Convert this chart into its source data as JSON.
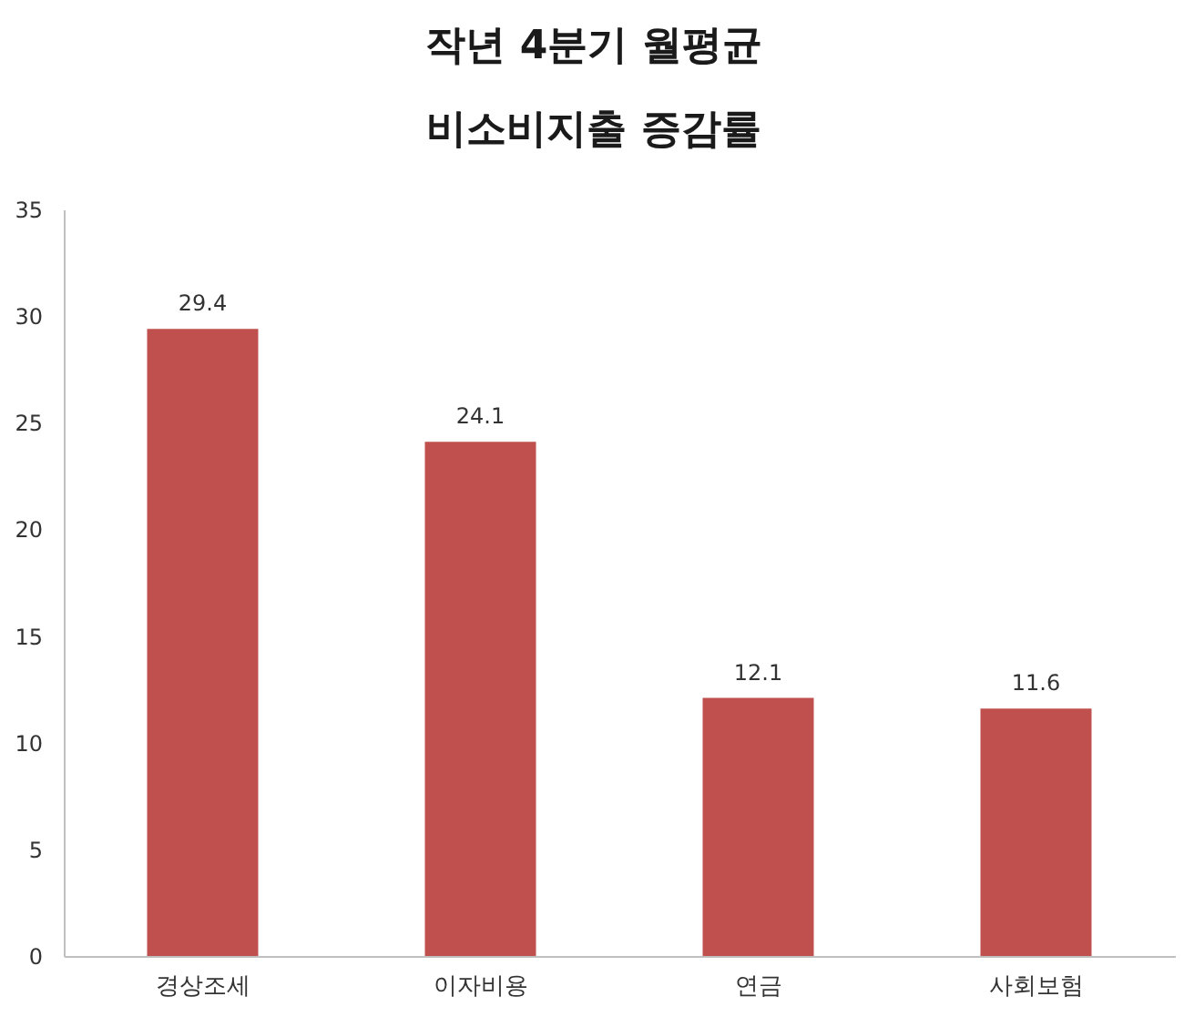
{
  "chart_data": {
    "type": "bar",
    "title": "작년 4분기 월평균\n비소비지출 증감률",
    "categories": [
      "경상조세",
      "이자비용",
      "연금",
      "사회보험"
    ],
    "values": [
      29.4,
      24.1,
      12.1,
      11.6
    ],
    "color": "#c0504d",
    "ylim": [
      0,
      35
    ],
    "yticks": [
      0,
      5,
      10,
      15,
      20,
      25,
      30,
      35
    ],
    "grid": false,
    "data_labels": true
  }
}
